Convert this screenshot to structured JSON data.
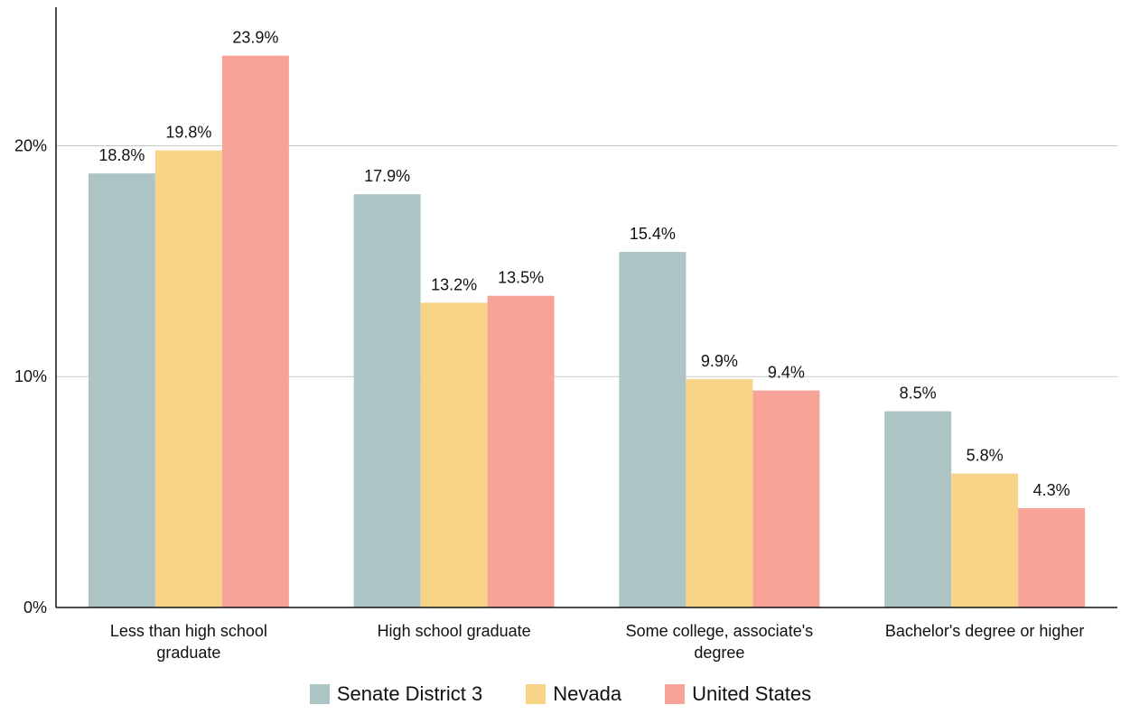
{
  "chart_data": {
    "type": "bar",
    "categories": [
      [
        "Less than high school",
        "graduate"
      ],
      [
        "High school graduate"
      ],
      [
        "Some college, associate's",
        "degree"
      ],
      [
        "Bachelor's degree or higher"
      ]
    ],
    "series": [
      {
        "name": "Senate District 3",
        "color": "#adc4c5",
        "values": [
          18.8,
          17.9,
          15.4,
          8.5
        ]
      },
      {
        "name": "Nevada",
        "color": "#f7d488",
        "values": [
          19.8,
          13.2,
          9.9,
          5.8
        ]
      },
      {
        "name": "United States",
        "color": "#f7a397",
        "values": [
          23.9,
          13.5,
          9.4,
          4.3
        ]
      }
    ],
    "data_labels": [
      [
        "18.8%",
        "17.9%",
        "15.4%",
        "8.5%"
      ],
      [
        "19.8%",
        "13.2%",
        "9.9%",
        "5.8%"
      ],
      [
        "23.9%",
        "13.5%",
        "9.4%",
        "4.3%"
      ]
    ],
    "y_ticks": [
      {
        "value": 0,
        "label": "0%"
      },
      {
        "value": 10,
        "label": "10%"
      },
      {
        "value": 20,
        "label": "20%"
      }
    ],
    "ylim": [
      0,
      26
    ],
    "grid": true,
    "legend_position": "bottom"
  }
}
